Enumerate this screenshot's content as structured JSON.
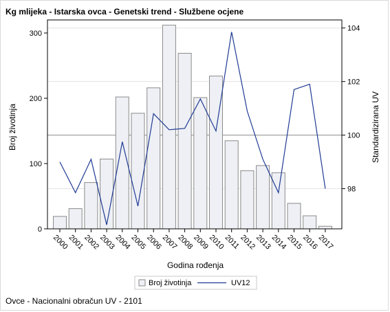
{
  "chart_data": {
    "type": "bar",
    "title": "Kg mlijeka - Istarska ovca - Genetski trend - Službene ocjene",
    "xlabel": "Godina rođenja",
    "ylabel": "Broj životinja",
    "y2label": "Standardizirana UV",
    "ylim": [
      0,
      320
    ],
    "y2lim": [
      96.5,
      104.3
    ],
    "yticks": [
      0,
      100,
      200,
      300
    ],
    "y2ticks": [
      98,
      100,
      102,
      104
    ],
    "y2_reference": 100,
    "categories": [
      "2000",
      "2001",
      "2002",
      "2003",
      "2004",
      "2005",
      "2006",
      "2007",
      "2008",
      "2009",
      "2010",
      "2011",
      "2012",
      "2013",
      "2014",
      "2015",
      "2016",
      "2017"
    ],
    "series": [
      {
        "name": "Broj životinja",
        "kind": "bar",
        "axis": "left",
        "color": "#eef0f5",
        "values": [
          19,
          31,
          71,
          107,
          202,
          177,
          216,
          312,
          269,
          201,
          234,
          135,
          89,
          97,
          86,
          39,
          20,
          4
        ]
      },
      {
        "name": "UV12",
        "kind": "line",
        "axis": "right",
        "color": "#1f3a93",
        "values": [
          99.0,
          97.85,
          99.1,
          96.65,
          99.75,
          97.35,
          100.8,
          100.2,
          100.25,
          101.35,
          100.15,
          103.85,
          100.9,
          99.1,
          97.85,
          101.7,
          101.9,
          98.0
        ]
      }
    ],
    "legend": "bottom"
  },
  "footer": {
    "note": "Ovce - Nacionalni obračun UV - 2101"
  }
}
